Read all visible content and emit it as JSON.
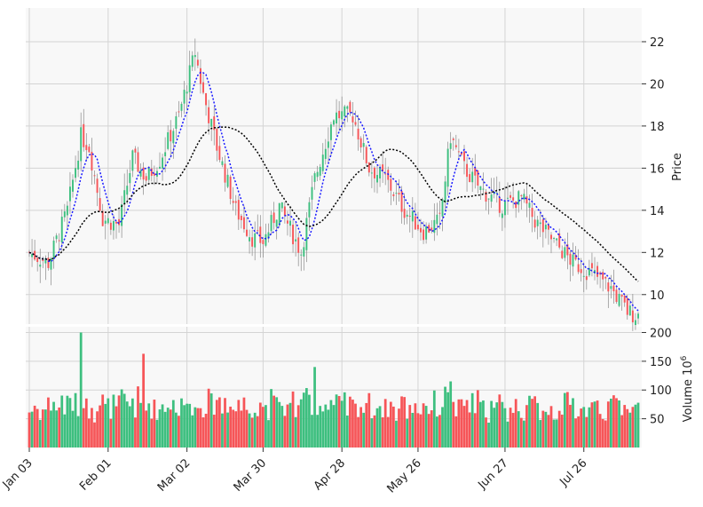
{
  "chart_data": {
    "type": "candlestick",
    "style": {
      "up_color": "#3dbf7f",
      "down_color": "#f65558",
      "ma_short_color": "#1a1aff",
      "ma_long_color": "#000000",
      "panel_background": "#f8f8f8",
      "grid_color": "#d4d4d4"
    },
    "price_panel": {
      "ylabel": "Price",
      "ylim": [
        8.6,
        23.6
      ],
      "yticks": [
        10,
        12,
        14,
        16,
        18,
        20,
        22
      ],
      "moving_averages": [
        {
          "window_days": 7,
          "style": "dotted",
          "color": "#1a1aff"
        },
        {
          "window_days": 30,
          "style": "dotted",
          "color": "#000000"
        }
      ],
      "approx_close_anchors": [
        {
          "date": "2019-01-03",
          "close": 12.0
        },
        {
          "date": "2019-01-10",
          "close": 11.5
        },
        {
          "date": "2019-01-17",
          "close": 14.0
        },
        {
          "date": "2019-01-22",
          "close": 17.5
        },
        {
          "date": "2019-01-25",
          "close": 17.0
        },
        {
          "date": "2019-01-30",
          "close": 13.6
        },
        {
          "date": "2019-02-05",
          "close": 13.3
        },
        {
          "date": "2019-02-10",
          "close": 16.5
        },
        {
          "date": "2019-02-15",
          "close": 15.5
        },
        {
          "date": "2019-02-20",
          "close": 16.4
        },
        {
          "date": "2019-02-27",
          "close": 18.5
        },
        {
          "date": "2019-03-05",
          "close": 21.5
        },
        {
          "date": "2019-03-08",
          "close": 19.5
        },
        {
          "date": "2019-03-13",
          "close": 17.0
        },
        {
          "date": "2019-03-20",
          "close": 14.0
        },
        {
          "date": "2019-03-26",
          "close": 12.7
        },
        {
          "date": "2019-03-30",
          "close": 12.5
        },
        {
          "date": "2019-04-05",
          "close": 14.2
        },
        {
          "date": "2019-04-13",
          "close": 12.0
        },
        {
          "date": "2019-04-18",
          "close": 15.5
        },
        {
          "date": "2019-04-25",
          "close": 18.5
        },
        {
          "date": "2019-05-02",
          "close": 18.5
        },
        {
          "date": "2019-05-08",
          "close": 16.0
        },
        {
          "date": "2019-05-14",
          "close": 15.5
        },
        {
          "date": "2019-05-21",
          "close": 14.0
        },
        {
          "date": "2019-05-28",
          "close": 13.0
        },
        {
          "date": "2019-06-03",
          "close": 13.5
        },
        {
          "date": "2019-06-07",
          "close": 17.5
        },
        {
          "date": "2019-06-12",
          "close": 16.0
        },
        {
          "date": "2019-06-18",
          "close": 15.0
        },
        {
          "date": "2019-06-26",
          "close": 14.2
        },
        {
          "date": "2019-07-03",
          "close": 14.6
        },
        {
          "date": "2019-07-08",
          "close": 13.5
        },
        {
          "date": "2019-07-15",
          "close": 12.5
        },
        {
          "date": "2019-07-22",
          "close": 11.5
        },
        {
          "date": "2019-07-29",
          "close": 11.0
        },
        {
          "date": "2019-08-05",
          "close": 10.3
        },
        {
          "date": "2019-08-11",
          "close": 9.2
        },
        {
          "date": "2019-08-15",
          "close": 9.0
        }
      ]
    },
    "volume_panel": {
      "ylabel": "Volume  $10^6$",
      "ylim": [
        0,
        210
      ],
      "yticks": [
        50,
        100,
        150,
        200
      ],
      "notable_values": [
        {
          "date": "2019-01-22",
          "volume": 200
        },
        {
          "date": "2019-02-14",
          "volume": 163
        },
        {
          "date": "2019-04-18",
          "volume": 140
        },
        {
          "date": "2019-06-07",
          "volume": 115
        }
      ]
    },
    "x_axis": {
      "start_date": "2019-01-03",
      "end_date": "2019-08-15",
      "tick_labels": [
        "Jan 03",
        "Feb 01",
        "Mar 02",
        "Mar 30",
        "Apr 28",
        "May 26",
        "Jun 27",
        "Jul 26"
      ],
      "tick_dates": [
        "2019-01-03",
        "2019-02-01",
        "2019-03-02",
        "2019-03-30",
        "2019-04-28",
        "2019-05-26",
        "2019-06-27",
        "2019-07-26"
      ],
      "tick_label_rotation": 45
    }
  }
}
